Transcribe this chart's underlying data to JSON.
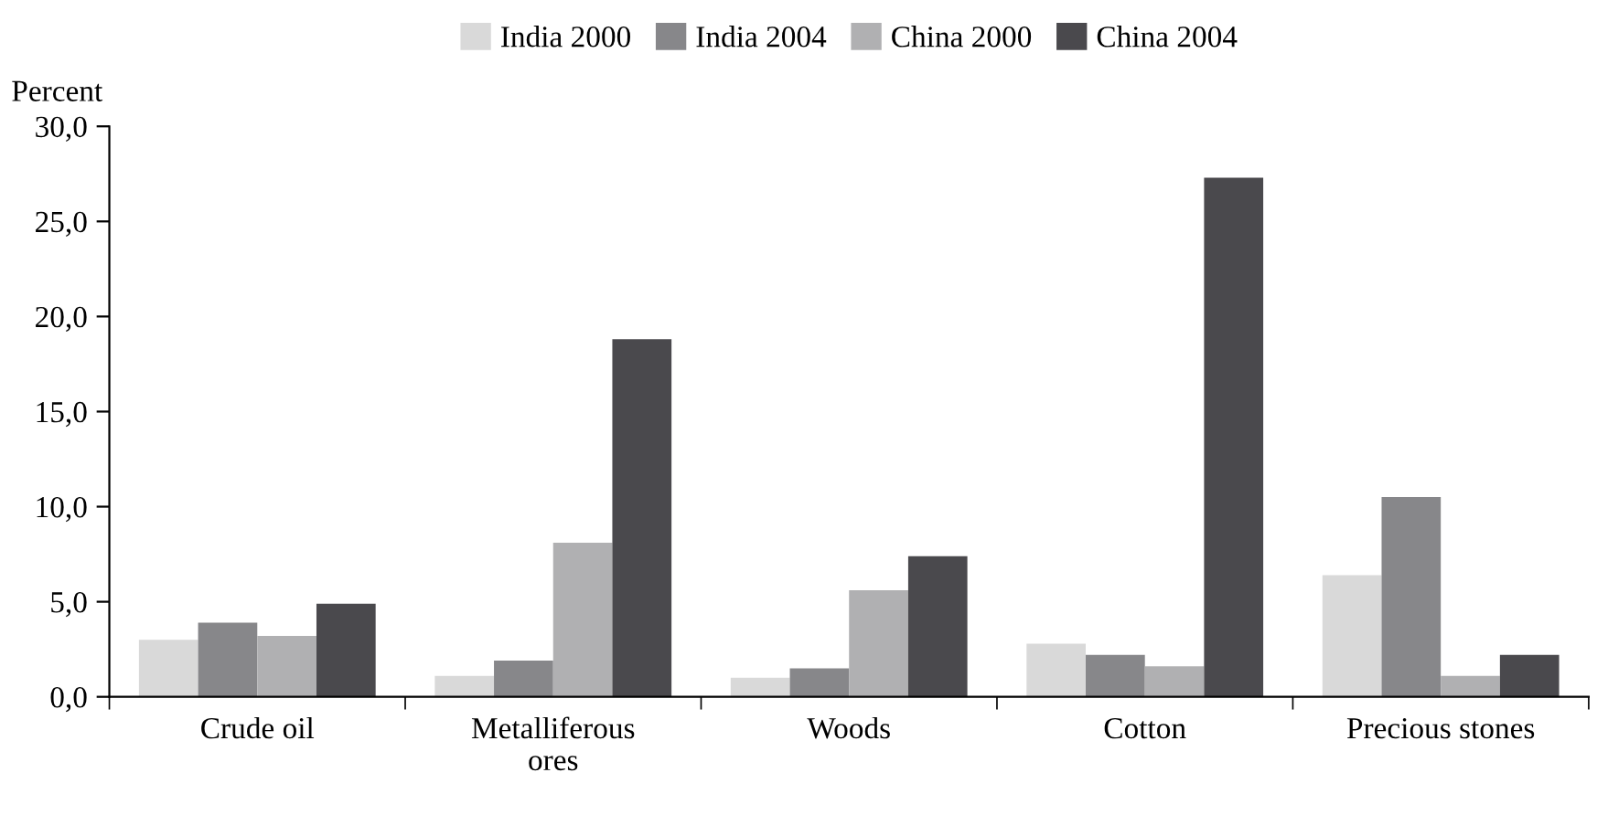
{
  "chart_data": {
    "type": "bar",
    "ylabel": "Percent",
    "categories": [
      "Crude oil",
      "Metalliferous\nores",
      "Woods",
      "Cotton",
      "Precious stones"
    ],
    "series": [
      {
        "name": "India 2000",
        "color": "#d9d9d9",
        "values": [
          3.0,
          1.1,
          1.0,
          2.8,
          6.4
        ]
      },
      {
        "name": "India 2004",
        "color": "#87878a",
        "values": [
          3.9,
          1.9,
          1.5,
          2.2,
          10.5
        ]
      },
      {
        "name": "China 2000",
        "color": "#b0b0b2",
        "values": [
          3.2,
          8.1,
          5.6,
          1.6,
          1.1
        ]
      },
      {
        "name": "China 2004",
        "color": "#4a494d",
        "values": [
          4.9,
          18.8,
          7.4,
          27.3,
          2.2
        ]
      }
    ],
    "ylim": [
      0,
      30
    ],
    "yticks": [
      {
        "value": 0,
        "label": "0,0"
      },
      {
        "value": 5,
        "label": "5,0"
      },
      {
        "value": 10,
        "label": "10,0"
      },
      {
        "value": 15,
        "label": "15,0"
      },
      {
        "value": 20,
        "label": "20,0"
      },
      {
        "value": 25,
        "label": "25,0"
      },
      {
        "value": 30,
        "label": "30,0"
      }
    ],
    "grid": false,
    "legend": "top"
  }
}
